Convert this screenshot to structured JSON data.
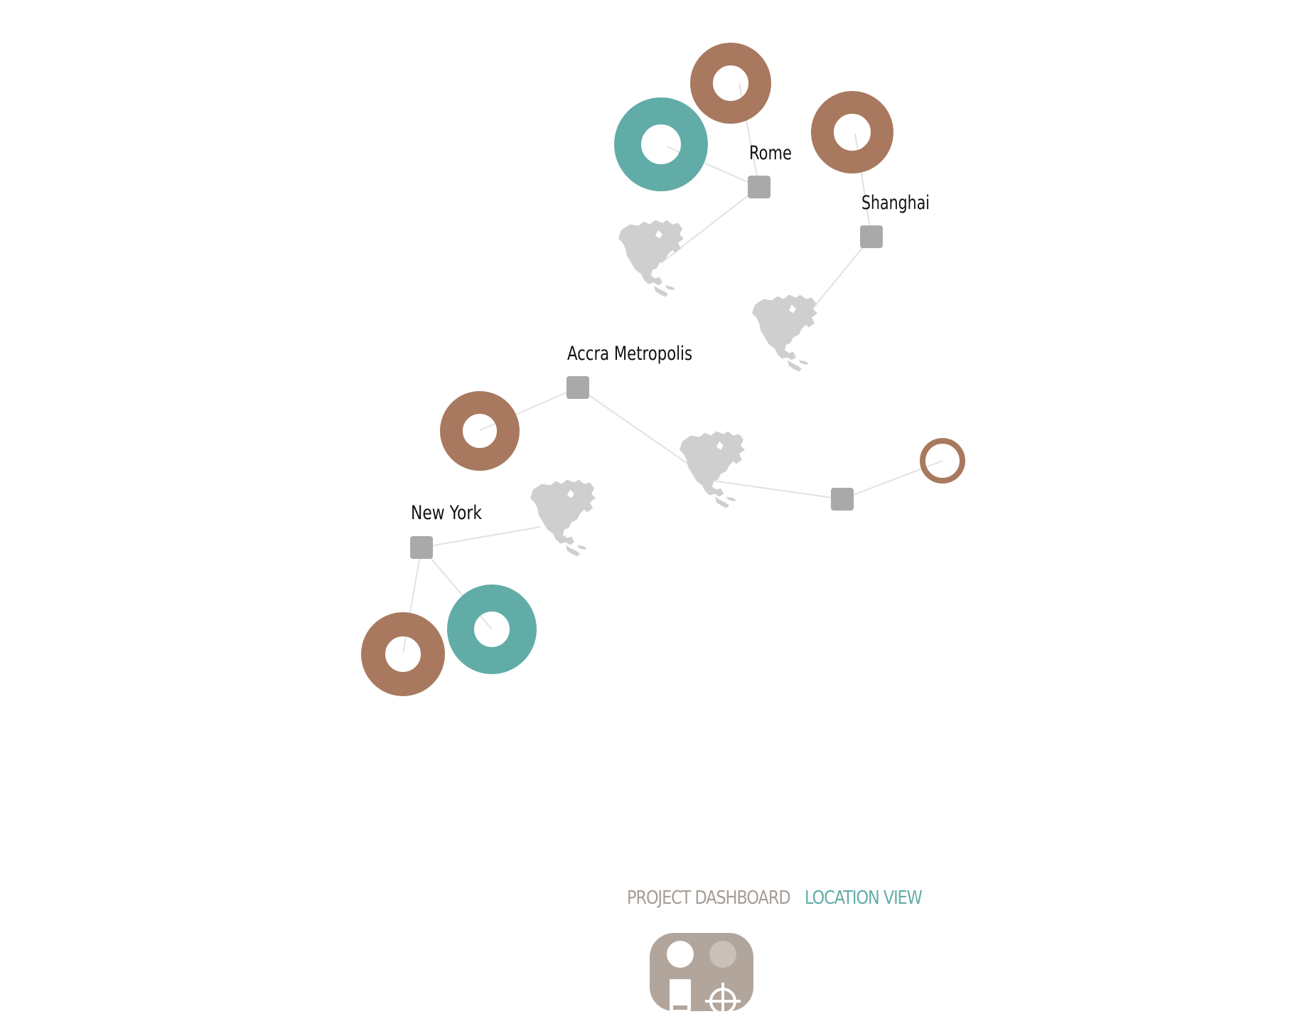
{
  "colors": {
    "background": "#ffffff",
    "ring_brown": "#a8795f",
    "ring_teal": "#62aca8",
    "hub": "#a9a9a9",
    "link": "#e2e2e2",
    "map": "#cfcfcf",
    "label": "#111111",
    "nav_inactive": "#a69d94",
    "nav_active": "#62aca8",
    "toggle_bg": "#b1a59c",
    "toggle_dot_off": "#c9c0b9"
  },
  "locations": [
    {
      "name": "Rome",
      "map_icon": "north-america-map-icon"
    },
    {
      "name": "Shanghai",
      "map_icon": "north-america-map-icon"
    },
    {
      "name": "Accra Metropolis",
      "map_icon": "north-america-map-icon"
    },
    {
      "name": "",
      "map_icon": "north-america-map-icon"
    },
    {
      "name": "New York",
      "map_icon": "north-america-map-icon"
    }
  ],
  "nav": {
    "dashboard_label": "PROJECT DASHBOARD",
    "location_label": "LOCATION VIEW",
    "active": "location"
  },
  "toggle": {
    "icons": [
      "project-icon",
      "location-target-icon"
    ]
  }
}
